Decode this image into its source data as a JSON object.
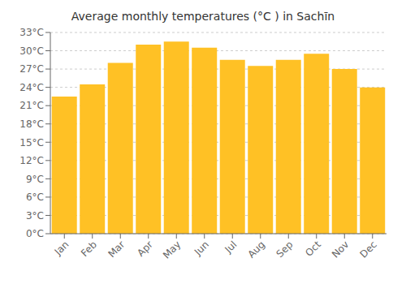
{
  "chart_data": {
    "type": "bar",
    "title": "Average monthly temperatures (°C ) in Sachīn",
    "categories": [
      "Jan",
      "Feb",
      "Mar",
      "Apr",
      "May",
      "Jun",
      "Jul",
      "Aug",
      "Sep",
      "Oct",
      "Nov",
      "Dec"
    ],
    "values": [
      22.5,
      24.5,
      28.0,
      31.0,
      31.5,
      30.5,
      28.5,
      27.5,
      28.5,
      29.5,
      27.0,
      24.0
    ],
    "color": "#FFC125",
    "ylim": [
      0,
      33
    ],
    "yticks": [
      {
        "value": 0,
        "label": "0°C"
      },
      {
        "value": 3,
        "label": "3°C"
      },
      {
        "value": 6,
        "label": "6°C"
      },
      {
        "value": 9,
        "label": "9°C"
      },
      {
        "value": 12,
        "label": "12°C"
      },
      {
        "value": 15,
        "label": "15°C"
      },
      {
        "value": 18,
        "label": "18°C"
      },
      {
        "value": 21,
        "label": "21°C"
      },
      {
        "value": 24,
        "label": "24°C"
      },
      {
        "value": 27,
        "label": "27°C"
      },
      {
        "value": 30,
        "label": "30°C"
      },
      {
        "value": 33,
        "label": "33°C"
      }
    ],
    "grid": true
  }
}
